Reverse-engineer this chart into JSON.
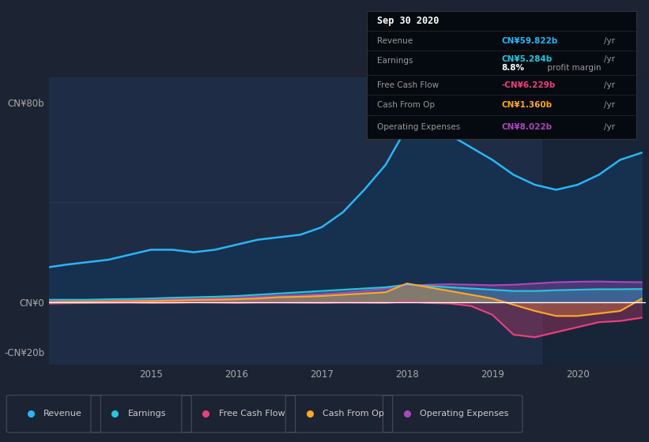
{
  "bg_color": "#1c2333",
  "plot_bg_color": "#1e2d45",
  "title": "Sep 30 2020",
  "colors": {
    "revenue": "#29b6f6",
    "earnings": "#26c6da",
    "free_cash_flow": "#ec407a",
    "cash_from_op": "#ffa726",
    "operating_expenses": "#ab47bc"
  },
  "info_box": {
    "date": "Sep 30 2020",
    "revenue_val": "CN¥59.822b",
    "earnings_val": "CN¥5.284b",
    "profit_margin": "8.8%",
    "fcf_val": "-CN¥6.229b",
    "cash_op_val": "CN¥1.360b",
    "op_exp_val": "CN¥8.022b"
  },
  "x": [
    2013.8,
    2014.0,
    2014.25,
    2014.5,
    2014.75,
    2015.0,
    2015.25,
    2015.5,
    2015.75,
    2016.0,
    2016.25,
    2016.5,
    2016.75,
    2017.0,
    2017.25,
    2017.5,
    2017.75,
    2018.0,
    2018.25,
    2018.5,
    2018.75,
    2019.0,
    2019.25,
    2019.5,
    2019.75,
    2020.0,
    2020.25,
    2020.5,
    2020.75
  ],
  "revenue": [
    14,
    15,
    16,
    17,
    19,
    21,
    21,
    20,
    21,
    23,
    25,
    26,
    27,
    30,
    36,
    45,
    55,
    70,
    71,
    67,
    62,
    57,
    51,
    47,
    45,
    47,
    51,
    57,
    59.8
  ],
  "earnings": [
    1.0,
    1.0,
    1.0,
    1.2,
    1.3,
    1.5,
    1.8,
    2.0,
    2.2,
    2.5,
    3.0,
    3.5,
    4.0,
    4.5,
    5.0,
    5.5,
    6.0,
    7.0,
    6.5,
    6.0,
    5.5,
    5.0,
    4.5,
    4.5,
    4.8,
    5.0,
    5.2,
    5.2,
    5.284
  ],
  "free_cash_flow": [
    -0.5,
    -0.4,
    -0.3,
    -0.2,
    -0.1,
    -0.3,
    -0.2,
    0.0,
    -0.1,
    -0.3,
    -0.1,
    -0.1,
    -0.2,
    -0.3,
    -0.1,
    -0.2,
    -0.3,
    0.3,
    -0.3,
    -0.5,
    -1.5,
    -5.0,
    -13.0,
    -14.0,
    -12.0,
    -10.0,
    -8.0,
    -7.5,
    -6.229
  ],
  "cash_from_op": [
    0.0,
    0.1,
    0.2,
    0.3,
    0.4,
    0.5,
    0.7,
    0.9,
    1.0,
    1.2,
    1.5,
    2.0,
    2.2,
    2.5,
    3.0,
    3.5,
    4.0,
    7.5,
    6.0,
    4.5,
    3.0,
    1.5,
    -1.0,
    -3.5,
    -5.5,
    -5.5,
    -4.5,
    -3.5,
    1.36
  ],
  "operating_expenses": [
    0.5,
    0.6,
    0.7,
    0.8,
    0.9,
    1.0,
    1.2,
    1.3,
    1.5,
    1.8,
    2.2,
    2.5,
    2.8,
    3.2,
    3.8,
    4.5,
    5.5,
    6.5,
    7.0,
    7.2,
    7.0,
    6.8,
    7.0,
    7.5,
    8.0,
    8.2,
    8.3,
    8.1,
    8.022
  ],
  "legend_items": [
    {
      "label": "Revenue",
      "color": "#29b6f6"
    },
    {
      "label": "Earnings",
      "color": "#26c6da"
    },
    {
      "label": "Free Cash Flow",
      "color": "#ec407a"
    },
    {
      "label": "Cash From Op",
      "color": "#ffa726"
    },
    {
      "label": "Operating Expenses",
      "color": "#ab47bc"
    }
  ]
}
